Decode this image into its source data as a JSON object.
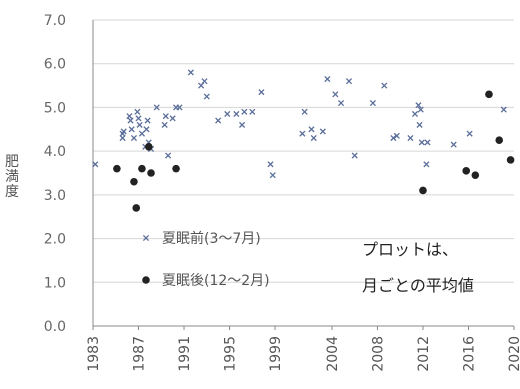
{
  "chart_data": {
    "type": "scatter",
    "ylabel": "肥満度",
    "xlabel": "",
    "ylim": [
      0,
      7.0
    ],
    "xlim": [
      1983,
      2020
    ],
    "yticks": [
      "0.0",
      "1.0",
      "2.0",
      "3.0",
      "4.0",
      "5.0",
      "6.0",
      "7.0"
    ],
    "xticks": [
      "1983",
      "1987",
      "1991",
      "1995",
      "1999",
      "2004",
      "2008",
      "2012",
      "2016",
      "2020"
    ],
    "legend_position": "bottom-left",
    "series": [
      {
        "name": "夏眠前(3〜7月)",
        "marker": "x",
        "color": "#5a6e9a",
        "points": [
          [
            1983.2,
            3.7
          ],
          [
            1985.6,
            4.3
          ],
          [
            1985.6,
            4.4
          ],
          [
            1985.7,
            4.45
          ],
          [
            1986.2,
            4.8
          ],
          [
            1986.3,
            4.7
          ],
          [
            1986.4,
            4.5
          ],
          [
            1986.6,
            4.3
          ],
          [
            1986.9,
            4.9
          ],
          [
            1987.0,
            4.75
          ],
          [
            1987.1,
            4.6
          ],
          [
            1987.3,
            4.4
          ],
          [
            1987.6,
            4.1
          ],
          [
            1987.7,
            4.5
          ],
          [
            1987.8,
            4.7
          ],
          [
            1987.9,
            4.2
          ],
          [
            1988.1,
            4.05
          ],
          [
            1988.6,
            5.0
          ],
          [
            1989.3,
            4.6
          ],
          [
            1989.4,
            4.8
          ],
          [
            1989.6,
            3.9
          ],
          [
            1990.0,
            4.75
          ],
          [
            1990.3,
            5.0
          ],
          [
            1990.6,
            5.0
          ],
          [
            1991.6,
            5.8
          ],
          [
            1992.5,
            5.5
          ],
          [
            1992.8,
            5.6
          ],
          [
            1993.0,
            5.25
          ],
          [
            1994.0,
            4.7
          ],
          [
            1994.8,
            4.85
          ],
          [
            1995.6,
            4.85
          ],
          [
            1996.1,
            4.6
          ],
          [
            1996.3,
            4.9
          ],
          [
            1997.0,
            4.9
          ],
          [
            1997.8,
            5.35
          ],
          [
            1998.6,
            3.7
          ],
          [
            1998.8,
            3.45
          ],
          [
            2001.4,
            4.4
          ],
          [
            2001.6,
            4.9
          ],
          [
            2002.2,
            4.5
          ],
          [
            2002.4,
            4.3
          ],
          [
            2003.2,
            4.45
          ],
          [
            2003.6,
            5.65
          ],
          [
            2004.3,
            5.3
          ],
          [
            2004.8,
            5.1
          ],
          [
            2005.5,
            5.6
          ],
          [
            2006.0,
            3.9
          ],
          [
            2007.6,
            5.1
          ],
          [
            2008.6,
            5.5
          ],
          [
            2009.4,
            4.3
          ],
          [
            2009.7,
            4.35
          ],
          [
            2010.9,
            4.3
          ],
          [
            2011.3,
            4.85
          ],
          [
            2011.6,
            5.05
          ],
          [
            2011.8,
            4.95
          ],
          [
            2011.7,
            4.6
          ],
          [
            2011.9,
            4.2
          ],
          [
            2012.3,
            3.7
          ],
          [
            2012.4,
            4.2
          ],
          [
            2014.7,
            4.15
          ],
          [
            2016.1,
            4.4
          ],
          [
            2019.1,
            4.95
          ]
        ]
      },
      {
        "name": "夏眠後(12〜2月)",
        "marker": "dot",
        "color": "#222222",
        "points": [
          [
            1985.1,
            3.6
          ],
          [
            1986.6,
            3.3
          ],
          [
            1986.8,
            2.7
          ],
          [
            1987.3,
            3.6
          ],
          [
            1987.9,
            4.1
          ],
          [
            1988.1,
            3.5
          ],
          [
            1990.3,
            3.6
          ],
          [
            2012.0,
            3.1
          ],
          [
            2015.8,
            3.55
          ],
          [
            2016.6,
            3.45
          ],
          [
            2017.8,
            5.3
          ],
          [
            2018.7,
            4.25
          ],
          [
            2019.7,
            3.8
          ]
        ]
      }
    ]
  },
  "annotation": {
    "line1": "プロットは、",
    "line2": "月ごとの平均値"
  }
}
